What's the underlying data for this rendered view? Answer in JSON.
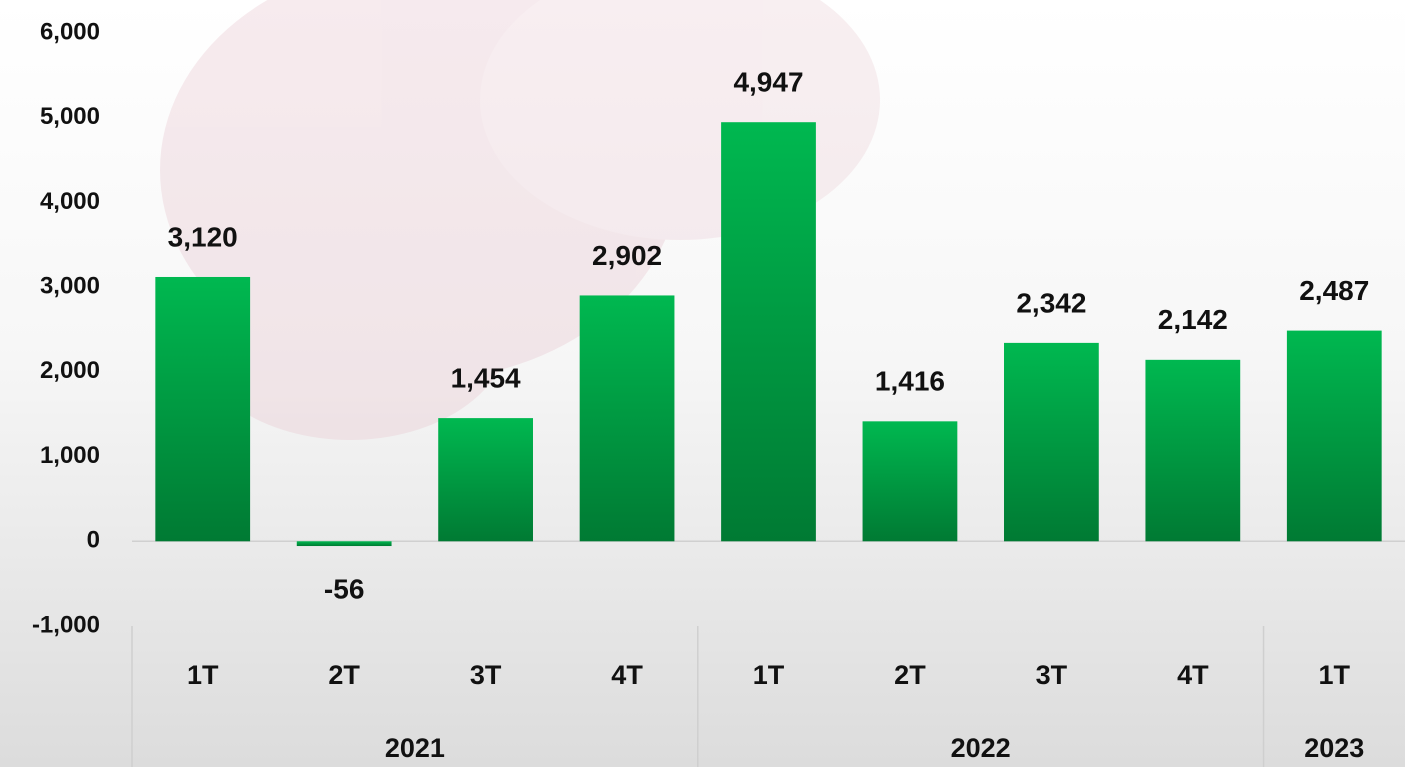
{
  "chart_data": {
    "type": "bar",
    "color": "#00b050",
    "groups": [
      {
        "name": "2021",
        "categories": [
          "1T",
          "2T",
          "3T",
          "4T"
        ],
        "values": [
          3120,
          -56,
          1454,
          2902
        ],
        "value_labels": [
          "3,120",
          "-56",
          "1,454",
          "2,902"
        ]
      },
      {
        "name": "2022",
        "categories": [
          "1T",
          "2T",
          "3T",
          "4T"
        ],
        "values": [
          4947,
          1416,
          2342,
          2142
        ],
        "value_labels": [
          "4,947",
          "1,416",
          "2,342",
          "2,142"
        ]
      },
      {
        "name": "2023",
        "categories": [
          "1T"
        ],
        "values": [
          2487
        ],
        "value_labels": [
          "2,487"
        ]
      }
    ],
    "ylim": [
      -1000,
      6000
    ],
    "yticks": [
      {
        "value": -1000,
        "label": "-1,000"
      },
      0,
      {
        "value": 1000,
        "label": "1,000"
      },
      {
        "value": 2000,
        "label": "2,000"
      },
      {
        "value": 3000,
        "label": "3,000"
      },
      {
        "value": 4000,
        "label": "4,000"
      },
      {
        "value": 5000,
        "label": "5,000"
      },
      {
        "value": 6000,
        "label": "6,000"
      }
    ],
    "grid": false
  }
}
